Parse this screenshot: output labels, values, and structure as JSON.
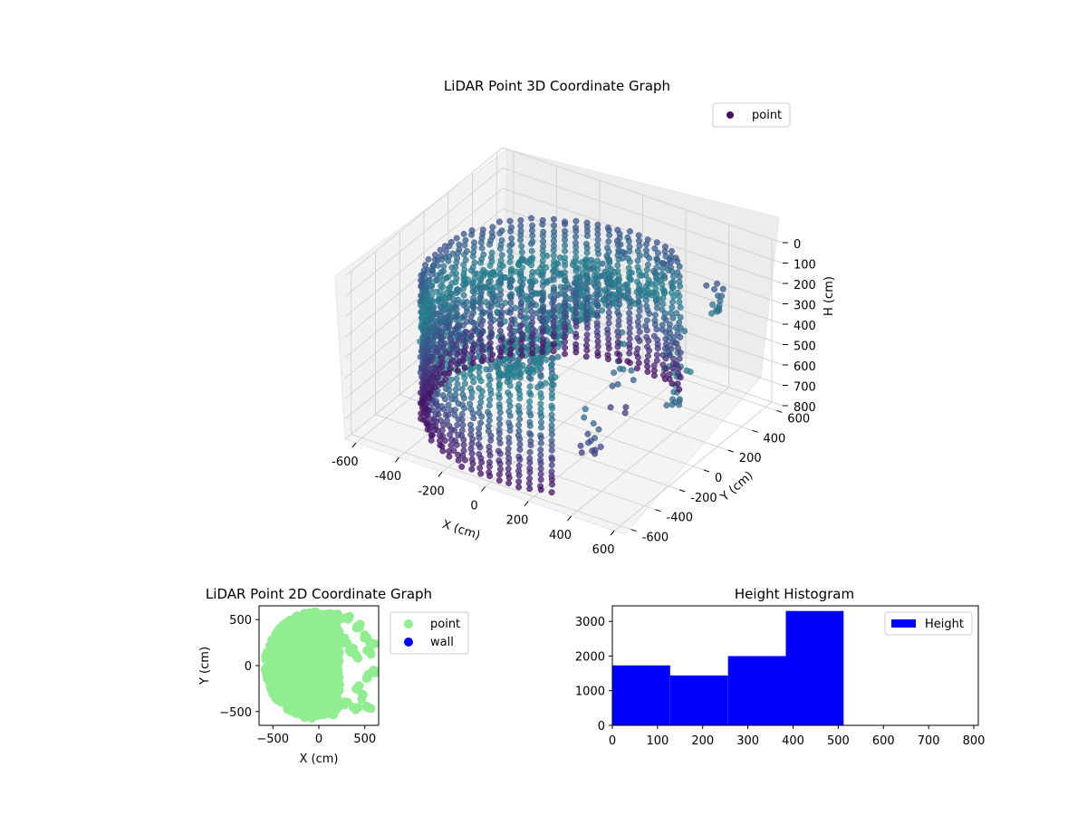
{
  "chart_data": [
    {
      "type": "scatter",
      "projection": "3d",
      "title": "LiDAR Point 3D Coordinate Graph",
      "xlabel": "X (cm)",
      "ylabel": "Y (cm)",
      "zlabel": "H (cm)",
      "xlim": [
        -650,
        650
      ],
      "ylim": [
        -650,
        650
      ],
      "zlim": [
        800,
        0
      ],
      "z_inverted": true,
      "xticks": [
        "-600",
        "-400",
        "-200",
        "0",
        "200",
        "400",
        "600"
      ],
      "yticks": [
        "-600",
        "-400",
        "-200",
        "0",
        "200",
        "400",
        "600"
      ],
      "zticks": [
        "0",
        "100",
        "200",
        "300",
        "400",
        "500",
        "600",
        "700",
        "800"
      ],
      "grid": true,
      "colormap": "viridis",
      "legend": {
        "position": "top-right",
        "entries": [
          {
            "label": "point",
            "color": "#46105f"
          }
        ]
      },
      "structure": {
        "cylinder_radius": 570,
        "cylinder_angle_range_deg": [
          65,
          295
        ],
        "height_range": [
          150,
          800
        ],
        "outlier_clusters": [
          {
            "x": 180,
            "y": 500,
            "h_range": [
              150,
              350
            ]
          },
          {
            "x": 420,
            "y": 150,
            "h_range": [
              200,
              500
            ]
          },
          {
            "x": 560,
            "y": -50,
            "h_range": [
              320,
              500
            ]
          },
          {
            "x": 250,
            "y": 40,
            "h_range": [
              250,
              700
            ]
          },
          {
            "x": 330,
            "y": -380,
            "h_range": [
              450,
              700
            ]
          },
          {
            "x": 480,
            "y": 430,
            "h_range": [
              150,
              320
            ]
          }
        ]
      }
    },
    {
      "type": "scatter",
      "title": "LiDAR Point 2D Coordinate Graph",
      "xlabel": "X (cm)",
      "ylabel": "Y (cm)",
      "xlim": [
        -650,
        650
      ],
      "ylim": [
        -650,
        650
      ],
      "xticks": [
        -500,
        0,
        500
      ],
      "yticks": [
        -500,
        0,
        500
      ],
      "legend": {
        "position": "outside-right",
        "entries": [
          {
            "label": "point",
            "color": "#90ee90"
          },
          {
            "label": "wall",
            "color": "#0000ff"
          }
        ]
      },
      "disk_radius": 590,
      "clusters": [
        {
          "x": 120,
          "y": 560
        },
        {
          "x": 200,
          "y": 540
        },
        {
          "x": 320,
          "y": 510
        },
        {
          "x": 420,
          "y": 420
        },
        {
          "x": 520,
          "y": 330
        },
        {
          "x": 580,
          "y": 230
        },
        {
          "x": 540,
          "y": 140
        },
        {
          "x": 430,
          "y": 90
        },
        {
          "x": 350,
          "y": 170
        },
        {
          "x": 280,
          "y": 270
        },
        {
          "x": 600,
          "y": -50
        },
        {
          "x": 520,
          "y": -120
        },
        {
          "x": 430,
          "y": -230
        },
        {
          "x": 470,
          "y": -340
        },
        {
          "x": 540,
          "y": -450
        },
        {
          "x": 400,
          "y": -480
        },
        {
          "x": 300,
          "y": -420
        }
      ]
    },
    {
      "type": "bar",
      "title": "Height Histogram",
      "xlabel": "",
      "ylabel": "",
      "xlim": [
        0,
        810
      ],
      "ylim": [
        0,
        3450
      ],
      "xticks": [
        0,
        100,
        200,
        300,
        400,
        500,
        600,
        700,
        800
      ],
      "yticks": [
        0,
        1000,
        2000,
        3000
      ],
      "bin_edges": [
        0,
        128,
        256,
        384,
        512
      ],
      "values": [
        1730,
        1440,
        2000,
        3300
      ],
      "color": "#0000ff",
      "legend": {
        "position": "top-right",
        "entries": [
          {
            "label": "Height",
            "color": "#0000ff"
          }
        ]
      }
    }
  ]
}
